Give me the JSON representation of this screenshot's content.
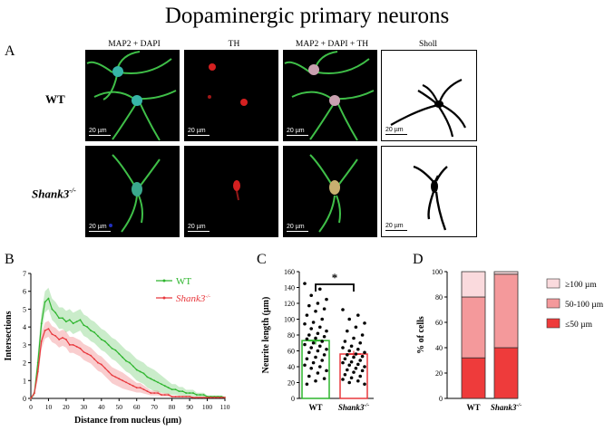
{
  "figure": {
    "title": "Dopaminergic primary neurons",
    "panel_a": {
      "letter": "A",
      "columns": [
        "MAP2 + DAPI",
        "TH",
        "MAP2 + DAPI + TH",
        "Sholl"
      ],
      "rows": [
        "WT",
        "Shank3"
      ],
      "row_superscript": "-/-",
      "scale_label": "20 µm"
    },
    "panel_b": {
      "letter": "B"
    },
    "panel_c": {
      "letter": "C"
    },
    "panel_d": {
      "letter": "D"
    }
  },
  "chart_data": [
    {
      "panel": "B",
      "type": "line",
      "xlabel": "Distance from nucleus (µm)",
      "ylabel": "Intersections",
      "xlim": [
        0,
        110
      ],
      "ylim": [
        0,
        7
      ],
      "xticks": [
        0,
        10,
        20,
        30,
        40,
        50,
        60,
        70,
        80,
        90,
        100,
        110
      ],
      "yticks": [
        0,
        1,
        2,
        3,
        4,
        5,
        6,
        7
      ],
      "legend_position": "top-right",
      "x": [
        0,
        2,
        4,
        6,
        8,
        10,
        12,
        14,
        16,
        18,
        20,
        22,
        24,
        26,
        28,
        30,
        32,
        34,
        36,
        38,
        40,
        42,
        44,
        46,
        48,
        50,
        52,
        54,
        56,
        58,
        60,
        62,
        64,
        66,
        68,
        70,
        72,
        74,
        76,
        78,
        80,
        82,
        84,
        86,
        88,
        90,
        92,
        94,
        96,
        98,
        100,
        102,
        104,
        106,
        108,
        110
      ],
      "series": [
        {
          "name": "WT",
          "color": "#2db52d",
          "values": [
            0,
            0.3,
            2.0,
            4.2,
            5.4,
            5.6,
            5.0,
            4.8,
            4.5,
            4.5,
            4.3,
            4.4,
            4.2,
            4.3,
            4.4,
            4.1,
            4.0,
            3.8,
            3.7,
            3.5,
            3.3,
            3.2,
            3.0,
            2.8,
            2.7,
            2.5,
            2.3,
            2.1,
            2.0,
            1.8,
            1.6,
            1.5,
            1.4,
            1.2,
            1.1,
            1.0,
            0.9,
            0.8,
            0.7,
            0.6,
            0.5,
            0.5,
            0.4,
            0.4,
            0.3,
            0.3,
            0.3,
            0.2,
            0.2,
            0.2,
            0.1,
            0.1,
            0.1,
            0.1,
            0.1,
            0.05
          ],
          "error": 0.6
        },
        {
          "name": "Shank3",
          "name_superscript": "-/-",
          "color": "#e8383d",
          "values": [
            0,
            0.3,
            1.5,
            3.2,
            3.8,
            3.9,
            3.6,
            3.5,
            3.3,
            3.4,
            3.3,
            3.0,
            3.0,
            2.9,
            2.8,
            2.6,
            2.5,
            2.4,
            2.2,
            2.0,
            1.9,
            1.7,
            1.5,
            1.3,
            1.2,
            1.1,
            1.0,
            0.9,
            0.8,
            0.7,
            0.6,
            0.6,
            0.5,
            0.4,
            0.3,
            0.3,
            0.3,
            0.2,
            0.2,
            0.2,
            0.1,
            0.1,
            0.1,
            0.1,
            0.1,
            0.1,
            0.05,
            0.05,
            0.05,
            0.05,
            0.05,
            0.05,
            0.05,
            0.05,
            0.05,
            0.05
          ],
          "error": 0.45
        }
      ]
    },
    {
      "panel": "C",
      "type": "bar",
      "ylabel": "Neurite length (µm)",
      "ylim": [
        0,
        160
      ],
      "yticks": [
        0,
        20,
        40,
        60,
        80,
        100,
        120,
        140,
        160
      ],
      "categories": [
        "WT",
        "Shank3"
      ],
      "category_superscripts": [
        "",
        "-/-"
      ],
      "values": [
        73,
        56
      ],
      "sem": [
        5,
        4
      ],
      "bar_colors": [
        "#2db52d",
        "#e8383d"
      ],
      "significance": "*",
      "points": [
        [
          145,
          138,
          130,
          125,
          120,
          117,
          113,
          110,
          105,
          100,
          96,
          94,
          90,
          88,
          85,
          82,
          80,
          78,
          76,
          75,
          72,
          70,
          68,
          66,
          64,
          62,
          60,
          58,
          55,
          52,
          50,
          48,
          45,
          42,
          40,
          38,
          35,
          32,
          28,
          25,
          22,
          18
        ],
        [
          112,
          105,
          100,
          95,
          90,
          85,
          80,
          76,
          72,
          70,
          66,
          64,
          62,
          60,
          58,
          56,
          55,
          53,
          52,
          50,
          48,
          46,
          45,
          43,
          42,
          40,
          38,
          36,
          35,
          33,
          30,
          28,
          26,
          24,
          22,
          20,
          18
        ]
      ]
    },
    {
      "panel": "D",
      "type": "bar",
      "stacked": true,
      "ylabel": "% of cells",
      "ylim": [
        0,
        100
      ],
      "yticks": [
        0,
        20,
        40,
        60,
        80,
        100
      ],
      "categories": [
        "WT",
        "Shank3"
      ],
      "category_superscripts": [
        "",
        "-/-"
      ],
      "series": [
        {
          "name": "≤50 µm",
          "color": "#ee3b3b",
          "values": [
            32,
            40
          ]
        },
        {
          "name": "50-100 µm",
          "color": "#f4999b",
          "values": [
            48,
            58
          ]
        },
        {
          "name": "≥100 µm",
          "color": "#fadadd",
          "values": [
            20,
            2
          ]
        }
      ]
    }
  ]
}
